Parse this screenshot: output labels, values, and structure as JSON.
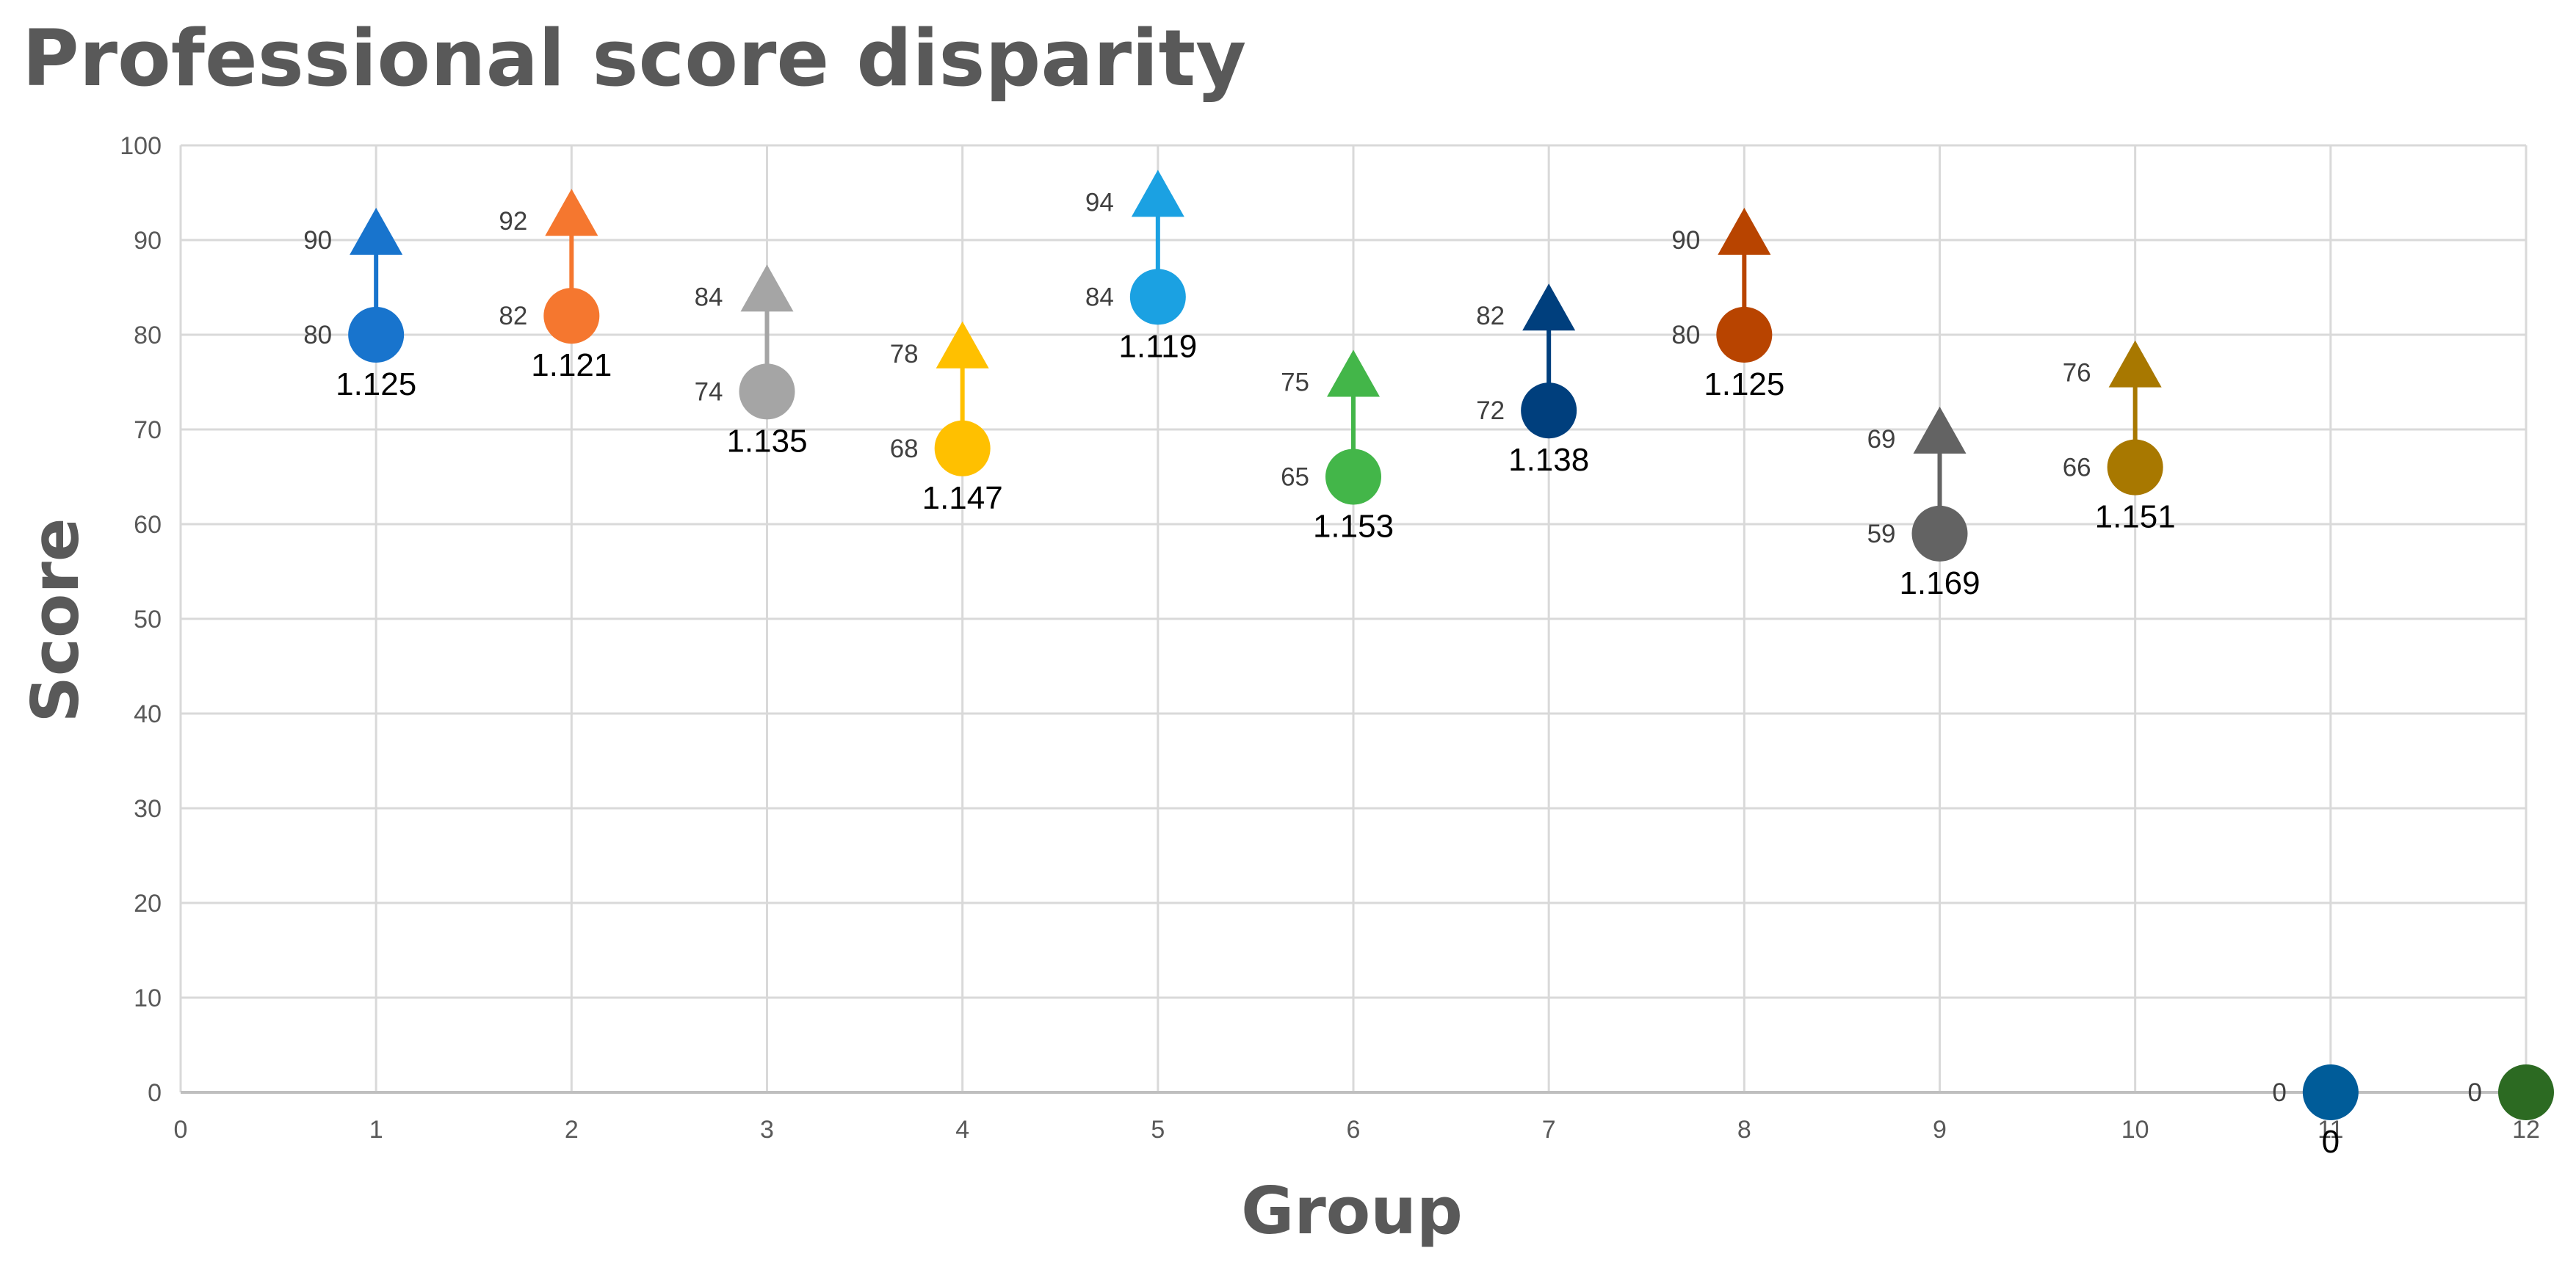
{
  "chart_data": {
    "type": "scatter",
    "title": "Professional score disparity",
    "xlabel": "Group",
    "ylabel": "Score",
    "xlim": [
      0,
      12
    ],
    "ylim": [
      0,
      100
    ],
    "x_ticks": [
      "0",
      "1",
      "2",
      "3",
      "4",
      "5",
      "6",
      "7",
      "8",
      "9",
      "10",
      "11",
      "12"
    ],
    "y_ticks": [
      "0",
      "10",
      "20",
      "30",
      "40",
      "50",
      "60",
      "70",
      "80",
      "90",
      "100"
    ],
    "grid": true,
    "legend": "none",
    "marker_start": "circle",
    "marker_end": "triangle",
    "points": [
      {
        "group": 1,
        "start": 80,
        "end": 90,
        "start_label": "80",
        "end_label": "90",
        "ratio_label": "1.125",
        "color": "#1874CD"
      },
      {
        "group": 2,
        "start": 82,
        "end": 92,
        "start_label": "82",
        "end_label": "92",
        "ratio_label": "1.121",
        "color": "#F5772F"
      },
      {
        "group": 3,
        "start": 74,
        "end": 84,
        "start_label": "74",
        "end_label": "84",
        "ratio_label": "1.135",
        "color": "#A5A5A5"
      },
      {
        "group": 4,
        "start": 68,
        "end": 78,
        "start_label": "68",
        "end_label": "78",
        "ratio_label": "1.147",
        "color": "#FFC000"
      },
      {
        "group": 5,
        "start": 84,
        "end": 94,
        "start_label": "84",
        "end_label": "94",
        "ratio_label": "1.119",
        "color": "#1BA1E2"
      },
      {
        "group": 6,
        "start": 65,
        "end": 75,
        "start_label": "65",
        "end_label": "75",
        "ratio_label": "1.153",
        "color": "#43B649"
      },
      {
        "group": 7,
        "start": 72,
        "end": 82,
        "start_label": "72",
        "end_label": "82",
        "ratio_label": "1.138",
        "color": "#003F7D"
      },
      {
        "group": 8,
        "start": 80,
        "end": 90,
        "start_label": "80",
        "end_label": "90",
        "ratio_label": "1.125",
        "color": "#B84400"
      },
      {
        "group": 9,
        "start": 59,
        "end": 69,
        "start_label": "59",
        "end_label": "69",
        "ratio_label": "1.169",
        "color": "#636363"
      },
      {
        "group": 10,
        "start": 66,
        "end": 76,
        "start_label": "66",
        "end_label": "76",
        "ratio_label": "1.151",
        "color": "#A87800"
      },
      {
        "group": 11,
        "start": 0,
        "end": null,
        "start_label": "0",
        "end_label": "",
        "ratio_label": "0",
        "color": "#005C99"
      },
      {
        "group": 12,
        "start": 0,
        "end": null,
        "start_label": "0",
        "end_label": "",
        "ratio_label": "",
        "color": "#2C6A22"
      }
    ]
  }
}
